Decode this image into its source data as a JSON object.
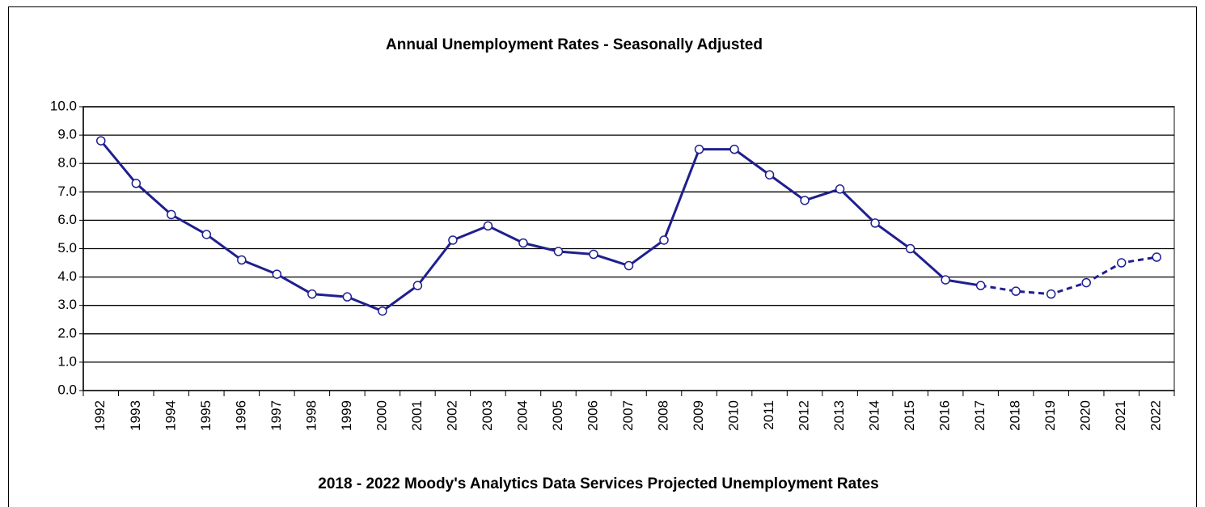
{
  "chart_data": {
    "type": "line",
    "title": "Annual Unemployment Rates - Seasonally Adjusted",
    "subtitle": "2018 - 2022 Moody's Analytics Data Services Projected Unemployment Rates",
    "categories": [
      "1992",
      "1993",
      "1994",
      "1995",
      "1996",
      "1997",
      "1998",
      "1999",
      "2000",
      "2001",
      "2002",
      "2003",
      "2004",
      "2005",
      "2006",
      "2007",
      "2008",
      "2009",
      "2010",
      "2011",
      "2012",
      "2013",
      "2014",
      "2015",
      "2016",
      "2017",
      "2018",
      "2019",
      "2020",
      "2021",
      "2022"
    ],
    "values": [
      8.8,
      7.3,
      6.2,
      5.5,
      4.6,
      4.1,
      3.4,
      3.3,
      2.8,
      3.7,
      5.3,
      5.8,
      5.2,
      4.9,
      4.8,
      4.4,
      5.3,
      8.5,
      8.5,
      7.6,
      6.7,
      7.1,
      5.9,
      5.0,
      3.9,
      3.7,
      3.5,
      3.4,
      3.8,
      4.5,
      4.7
    ],
    "color": "#1f1f8f",
    "dashed_from": "2017",
    "ylim": [
      0,
      10
    ],
    "yticks": [
      {
        "value": 0,
        "label": "0.0"
      },
      {
        "value": 1,
        "label": "1.0"
      },
      {
        "value": 2,
        "label": "2.0"
      },
      {
        "value": 3,
        "label": "3.0"
      },
      {
        "value": 4,
        "label": "4.0"
      },
      {
        "value": 5,
        "label": "5.0"
      },
      {
        "value": 6,
        "label": "6.0"
      },
      {
        "value": 7,
        "label": "7.0"
      },
      {
        "value": 8,
        "label": "8.0"
      },
      {
        "value": 9,
        "label": "9.0"
      },
      {
        "value": 10,
        "label": "10.0"
      }
    ],
    "grid": true
  }
}
